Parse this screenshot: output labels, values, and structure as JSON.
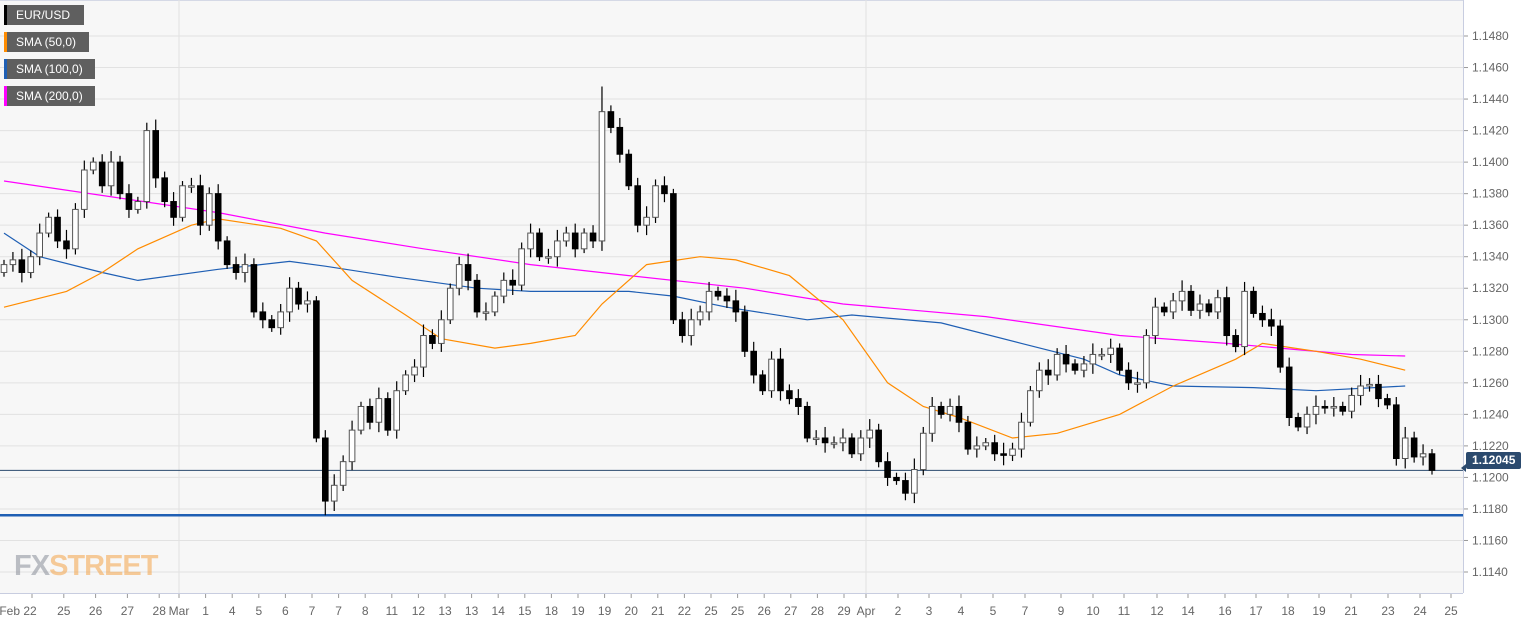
{
  "legend": [
    {
      "label": "EUR/USD",
      "color": "#000000"
    },
    {
      "label": "SMA (50,0)",
      "color": "#ff8c00"
    },
    {
      "label": "SMA (100,0)",
      "color": "#1f5fb4"
    },
    {
      "label": "SMA (200,0)",
      "color": "#ff00ff"
    }
  ],
  "logo": {
    "fx": "FX",
    "street": "STREET"
  },
  "current_price_label": "1.12045",
  "chart_data": {
    "type": "candlestick",
    "symbol": "EUR/USD",
    "ylim": [
      1.1122,
      1.15
    ],
    "y_ticks": [
      "1.1480",
      "1.1460",
      "1.1440",
      "1.1420",
      "1.1400",
      "1.1380",
      "1.1360",
      "1.1340",
      "1.1320",
      "1.1300",
      "1.1280",
      "1.1260",
      "1.1240",
      "1.1220",
      "1.1200",
      "1.1180",
      "1.1160",
      "1.1140"
    ],
    "x_tick_labels": [
      "Feb 22",
      "25",
      "26",
      "27",
      "28",
      "Mar",
      "1",
      "4",
      "5",
      "6",
      "7",
      "7",
      "8",
      "11",
      "12",
      "13",
      "13",
      "14",
      "15",
      "18",
      "19",
      "19",
      "20",
      "21",
      "22",
      "25",
      "25",
      "26",
      "27",
      "28",
      "29",
      "Apr",
      "2",
      "3",
      "4",
      "5",
      "7",
      "9",
      "10",
      "11",
      "12",
      "14",
      "16",
      "17",
      "18",
      "19",
      "21",
      "23",
      "24",
      "25"
    ],
    "grid": true,
    "closes": [
      1.1335,
      1.1338,
      1.133,
      1.134,
      1.1355,
      1.1365,
      1.135,
      1.1345,
      1.137,
      1.1395,
      1.14,
      1.1385,
      1.14,
      1.138,
      1.137,
      1.1375,
      1.142,
      1.139,
      1.1375,
      1.1365,
      1.1385,
      1.1385,
      1.136,
      1.138,
      1.135,
      1.1335,
      1.133,
      1.1335,
      1.1305,
      1.13,
      1.1295,
      1.1305,
      1.132,
      1.131,
      1.1312,
      1.1225,
      1.1185,
      1.1195,
      1.121,
      1.123,
      1.1245,
      1.1235,
      1.125,
      1.123,
      1.1255,
      1.1265,
      1.127,
      1.129,
      1.1285,
      1.13,
      1.132,
      1.1335,
      1.1325,
      1.1305,
      1.1305,
      1.1315,
      1.1325,
      1.1322,
      1.1345,
      1.1355,
      1.134,
      1.134,
      1.135,
      1.1355,
      1.1345,
      1.1355,
      1.135,
      1.1432,
      1.1422,
      1.1405,
      1.1385,
      1.136,
      1.1365,
      1.1385,
      1.138,
      1.13,
      1.129,
      1.13,
      1.1305,
      1.1318,
      1.1315,
      1.1312,
      1.1305,
      1.128,
      1.1265,
      1.1255,
      1.1275,
      1.1255,
      1.125,
      1.1245,
      1.1225,
      1.1225,
      1.1222,
      1.1222,
      1.1225,
      1.1215,
      1.1225,
      1.123,
      1.121,
      1.12,
      1.1198,
      1.119,
      1.1205,
      1.1228,
      1.1245,
      1.124,
      1.1245,
      1.1235,
      1.1218,
      1.122,
      1.1222,
      1.1215,
      1.1214,
      1.1218,
      1.1235,
      1.1255,
      1.1268,
      1.1265,
      1.1278,
      1.1272,
      1.1268,
      1.1272,
      1.1278,
      1.1278,
      1.1282,
      1.1268,
      1.126,
      1.126,
      1.129,
      1.1308,
      1.1305,
      1.1312,
      1.1318,
      1.1306,
      1.131,
      1.1305,
      1.1314,
      1.129,
      1.1283,
      1.1318,
      1.1304,
      1.13,
      1.1296,
      1.127,
      1.1238,
      1.1232,
      1.124,
      1.1245,
      1.1244,
      1.1245,
      1.1242,
      1.1252,
      1.1258,
      1.1259,
      1.125,
      1.1246,
      1.1212,
      1.1225,
      1.1213,
      1.1215,
      1.12045
    ],
    "period_high": 1.1448,
    "period_low": 1.1176,
    "sma50": [
      [
        0,
        1.1308
      ],
      [
        7,
        1.1318
      ],
      [
        11,
        1.133
      ],
      [
        15,
        1.1345
      ],
      [
        21,
        1.136
      ],
      [
        24,
        1.1364
      ],
      [
        31,
        1.1358
      ],
      [
        35,
        1.135
      ],
      [
        39,
        1.1325
      ],
      [
        45,
        1.1303
      ],
      [
        49,
        1.1288
      ],
      [
        55,
        1.1282
      ],
      [
        59,
        1.1285
      ],
      [
        64,
        1.129
      ],
      [
        67,
        1.131
      ],
      [
        72,
        1.1335
      ],
      [
        78,
        1.134
      ],
      [
        82,
        1.1338
      ],
      [
        88,
        1.1328
      ],
      [
        94,
        1.13
      ],
      [
        99,
        1.126
      ],
      [
        103,
        1.1245
      ],
      [
        107,
        1.1238
      ],
      [
        113,
        1.1225
      ],
      [
        118,
        1.1228
      ],
      [
        125,
        1.124
      ],
      [
        131,
        1.1258
      ],
      [
        138,
        1.1275
      ],
      [
        141,
        1.1285
      ],
      [
        147,
        1.128
      ],
      [
        152,
        1.1275
      ],
      [
        157,
        1.1268
      ]
    ],
    "sma100": [
      [
        0,
        1.1355
      ],
      [
        4,
        1.134
      ],
      [
        11,
        1.133
      ],
      [
        15,
        1.1325
      ],
      [
        24,
        1.1332
      ],
      [
        32,
        1.1337
      ],
      [
        36,
        1.1334
      ],
      [
        44,
        1.1327
      ],
      [
        53,
        1.132
      ],
      [
        59,
        1.1318
      ],
      [
        70,
        1.1318
      ],
      [
        75,
        1.1315
      ],
      [
        81,
        1.1308
      ],
      [
        90,
        1.13
      ],
      [
        95,
        1.1303
      ],
      [
        105,
        1.1298
      ],
      [
        114,
        1.1285
      ],
      [
        121,
        1.1275
      ],
      [
        125,
        1.1265
      ],
      [
        131,
        1.1258
      ],
      [
        140,
        1.1257
      ],
      [
        147,
        1.1255
      ],
      [
        157,
        1.1258
      ]
    ],
    "sma200": [
      [
        0,
        1.1388
      ],
      [
        24,
        1.1368
      ],
      [
        36,
        1.1355
      ],
      [
        47,
        1.1345
      ],
      [
        59,
        1.1335
      ],
      [
        70,
        1.1328
      ],
      [
        83,
        1.132
      ],
      [
        94,
        1.131
      ],
      [
        110,
        1.1302
      ],
      [
        125,
        1.129
      ],
      [
        137,
        1.1285
      ],
      [
        151,
        1.1278
      ],
      [
        157,
        1.1277
      ]
    ],
    "horizontal_lines": [
      {
        "value": 1.12045,
        "color": "#2b4a6e",
        "kind": "current price"
      },
      {
        "value": 1.1176,
        "color": "#1f5fb4",
        "kind": "support"
      }
    ],
    "colors": {
      "bull": "#ffffff",
      "bear": "#000000",
      "sma50": "#ff8c00",
      "sma100": "#1f5fb4",
      "sma200": "#ff00ff"
    }
  }
}
